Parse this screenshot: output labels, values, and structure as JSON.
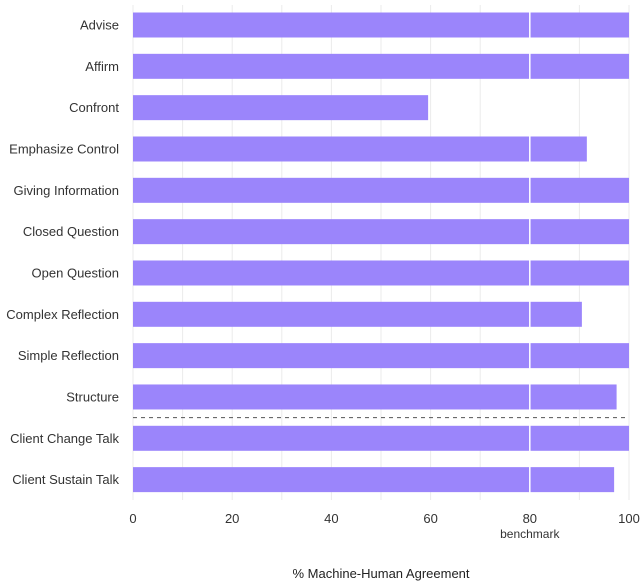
{
  "chart_data": {
    "type": "bar",
    "orientation": "horizontal",
    "categories": [
      "Advise",
      "Affirm",
      "Confront",
      "Emphasize Control",
      "Giving Information",
      "Closed Question",
      "Open Question",
      "Complex Reflection",
      "Simple Reflection",
      "Structure",
      "Client Change Talk",
      "Client Sustain Talk"
    ],
    "values": [
      100,
      100,
      59.5,
      91.5,
      100,
      100,
      100,
      90.5,
      100,
      97.5,
      100,
      97
    ],
    "title": "",
    "xlabel": "% Machine-Human Agreement",
    "ylabel": "",
    "xlim": [
      0,
      100
    ],
    "xticks": [
      "0",
      "20",
      "40",
      "60",
      "80",
      "100"
    ],
    "benchmark": {
      "value": 80,
      "label": "benchmark"
    },
    "separator_after_index": 9,
    "grid": true,
    "bar_color": "#9b85fb",
    "benchmark_line_color": "#ffffff"
  }
}
